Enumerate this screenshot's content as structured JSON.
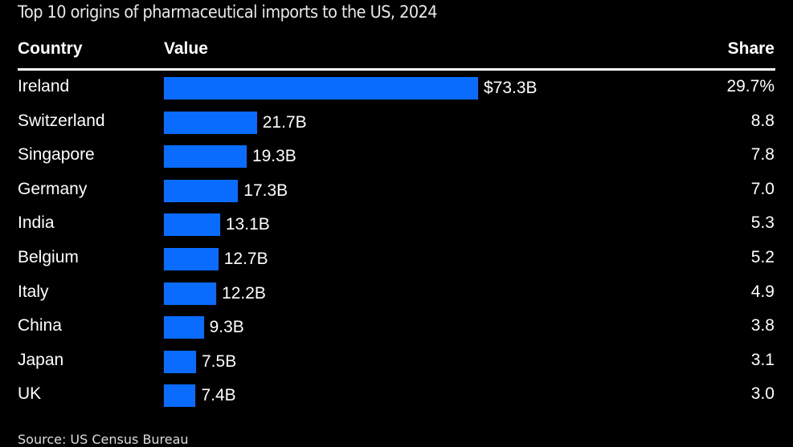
{
  "chart_data": {
    "type": "bar",
    "orientation": "horizontal",
    "title": "Top 10 origins of pharmaceutical imports to the US, 2024",
    "columns": {
      "country": "Country",
      "value": "Value",
      "share": "Share"
    },
    "categories": [
      "Ireland",
      "Switzerland",
      "Singapore",
      "Germany",
      "India",
      "Belgium",
      "Italy",
      "China",
      "Japan",
      "UK"
    ],
    "values": [
      73.3,
      21.7,
      19.3,
      17.3,
      13.1,
      12.7,
      12.2,
      9.3,
      7.5,
      7.4
    ],
    "value_labels": [
      "$73.3B",
      "21.7B",
      "19.3B",
      "17.3B",
      "13.1B",
      "12.7B",
      "12.2B",
      "9.3B",
      "7.5B",
      "7.4B"
    ],
    "shares": [
      "29.7%",
      "8.8",
      "7.8",
      "7.0",
      "5.3",
      "5.2",
      "4.9",
      "3.8",
      "3.1",
      "3.0"
    ],
    "source": "Source: US Census Bureau",
    "bar_color": "#0a6cff",
    "background": "#000000"
  }
}
